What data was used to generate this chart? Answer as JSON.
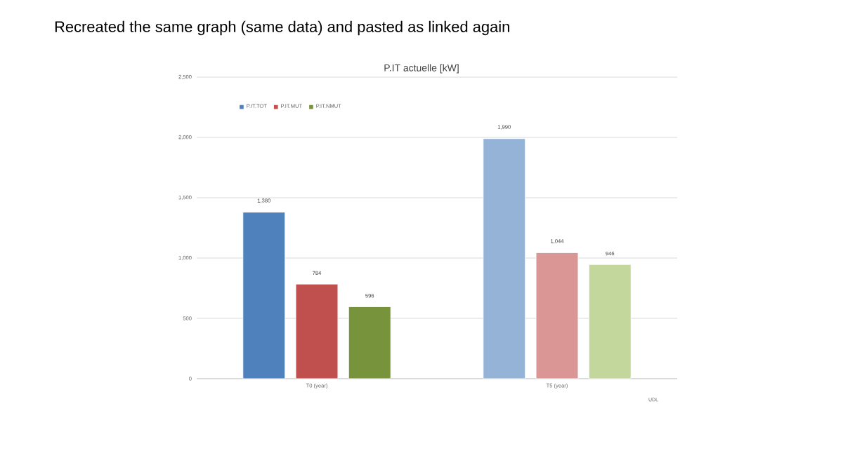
{
  "chart_data": {
    "type": "bar",
    "title": "Recreated the same graph (same data) and pasted as linked again",
    "subtitle": "P.IT actuelle [kW]",
    "categories": [
      "T0 (year)",
      "T5 (year)"
    ],
    "series": [
      {
        "name": "P.IT.TOT",
        "color": "#4f81bd",
        "colors": [
          "#4f81bd",
          "#95b3d7"
        ],
        "values": [
          1380,
          1990
        ],
        "value_labels": [
          "1,380",
          "1,990"
        ]
      },
      {
        "name": "P.IT.MUT",
        "color": "#c0504d",
        "colors": [
          "#c0504d",
          "#d99694"
        ],
        "values": [
          784,
          1044
        ],
        "value_labels": [
          "784",
          "1,044"
        ]
      },
      {
        "name": "P.IT.NMUT",
        "color": "#77933c",
        "colors": [
          "#77933c",
          "#c3d69b"
        ],
        "values": [
          596,
          946
        ],
        "value_labels": [
          "596",
          "946"
        ]
      }
    ],
    "ylim": [
      0,
      2500
    ],
    "yticks": [
      0,
      500,
      {
        "value": 1000,
        "label": "1,000"
      },
      {
        "value": 1500,
        "label": "1,500"
      },
      {
        "value": 2000,
        "label": "2,000"
      },
      {
        "value": 2500,
        "label": "2,500"
      }
    ],
    "grid": "y",
    "legend": "top left",
    "annotations": [
      "UDL"
    ]
  }
}
